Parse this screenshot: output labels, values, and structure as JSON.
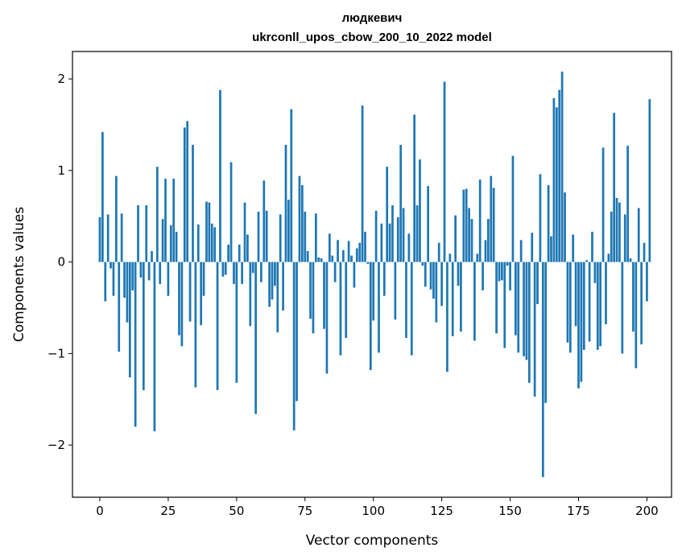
{
  "chart_data": {
    "type": "bar",
    "title_line1": "людкевич",
    "title_line2": "ukrconll_upos_cbow_200_10_2022 model",
    "xlabel": "Vector components",
    "ylabel": "Components values",
    "xlim": [
      -10,
      209
    ],
    "ylim": [
      -2.57,
      2.3
    ],
    "xticks": [
      0,
      25,
      50,
      75,
      100,
      125,
      150,
      175,
      200
    ],
    "xtick_labels": [
      "0",
      "25",
      "50",
      "75",
      "100",
      "125",
      "150",
      "175",
      "200"
    ],
    "yticks": [
      -2,
      -1,
      0,
      1,
      2
    ],
    "ytick_labels": [
      "−2",
      "−1",
      "0",
      "1",
      "2"
    ],
    "bar_color": "#1f77b4",
    "values": [
      0.49,
      1.42,
      -0.43,
      0.52,
      -0.07,
      -0.37,
      0.94,
      -0.98,
      0.53,
      -0.39,
      -0.66,
      -1.26,
      -0.31,
      -1.8,
      0.62,
      -0.17,
      -1.4,
      0.62,
      -0.2,
      0.12,
      -1.85,
      1.04,
      -0.24,
      0.47,
      0.91,
      -0.37,
      0.4,
      0.91,
      0.33,
      -0.8,
      -0.92,
      1.47,
      1.54,
      -0.65,
      1.28,
      -1.37,
      0.41,
      -0.69,
      -0.37,
      0.66,
      0.65,
      0.42,
      0.38,
      -1.4,
      1.88,
      -0.16,
      -0.14,
      0.19,
      1.09,
      -0.24,
      -1.32,
      0.19,
      -0.24,
      0.65,
      0.3,
      -0.7,
      -0.12,
      -1.66,
      0.55,
      -0.22,
      0.89,
      0.56,
      -0.49,
      -0.41,
      -0.26,
      -0.77,
      0.52,
      -0.53,
      1.28,
      0.68,
      1.67,
      -1.84,
      -1.52,
      0.94,
      0.84,
      0.55,
      0.12,
      -0.62,
      -0.78,
      0.53,
      0.05,
      0.04,
      -0.73,
      -1.22,
      0.31,
      0.07,
      -0.22,
      0.24,
      -1.02,
      0.13,
      -0.83,
      0.23,
      0.07,
      -0.28,
      0.15,
      0.21,
      1.71,
      0.33,
      -0.02,
      -1.18,
      -0.64,
      0.56,
      -0.99,
      0.42,
      -0.37,
      1.04,
      0.42,
      0.62,
      -0.63,
      0.49,
      1.28,
      0.59,
      -0.83,
      0.31,
      -1.02,
      1.61,
      0.62,
      1.12,
      -0.04,
      -0.27,
      0.83,
      -0.3,
      -0.4,
      -0.66,
      0.21,
      -0.48,
      1.97,
      -1.2,
      0.09,
      -0.81,
      0.51,
      -0.26,
      -0.76,
      0.79,
      0.8,
      0.59,
      0.47,
      -0.86,
      0.09,
      0.9,
      -0.31,
      0.24,
      0.47,
      0.94,
      0.81,
      -0.78,
      -0.21,
      -0.2,
      -0.94,
      -0.04,
      -0.31,
      1.16,
      -0.8,
      -0.99,
      0.24,
      -1.03,
      -1.07,
      -1.32,
      0.32,
      -1.47,
      -0.46,
      0.96,
      -2.35,
      -1.54,
      0.84,
      0.28,
      1.79,
      1.69,
      1.88,
      2.08,
      0.76,
      -0.88,
      -0.99,
      0.3,
      -0.7,
      -1.38,
      -1.31,
      -0.96,
      0.02,
      -0.87,
      0.33,
      -0.23,
      -0.96,
      -0.92,
      1.25,
      -0.68,
      0.09,
      0.55,
      1.63,
      0.7,
      0.65,
      -1.0,
      0.52,
      1.27,
      0.04,
      -0.76,
      -1.16,
      0.59,
      -0.9,
      0.21,
      -0.43,
      1.78
    ]
  }
}
